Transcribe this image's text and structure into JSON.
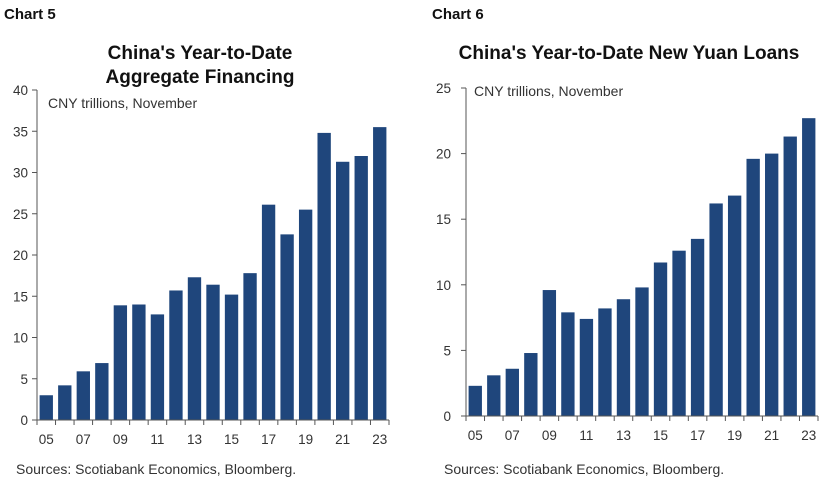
{
  "charts": [
    {
      "label": "Chart 5",
      "title_line1": "China's Year-to-Date",
      "title_line2": "Aggregate Financing",
      "source": "Sources: Scotiabank Economics, Bloomberg."
    },
    {
      "label": "Chart 6",
      "title_line1": "China's Year-to-Date New Yuan Loans",
      "source": "Sources: Scotiabank Economics, Bloomberg."
    }
  ],
  "chart_data": [
    {
      "type": "bar",
      "title": "China's Year-to-Date Aggregate Financing",
      "annotation": "CNY trillions, November",
      "categories": [
        "05",
        "06",
        "07",
        "08",
        "09",
        "10",
        "11",
        "12",
        "13",
        "14",
        "15",
        "16",
        "17",
        "18",
        "19",
        "20",
        "21",
        "22",
        "23"
      ],
      "xtick_labels": [
        "05",
        "07",
        "09",
        "11",
        "13",
        "15",
        "17",
        "19",
        "21",
        "23"
      ],
      "values": [
        3.0,
        4.2,
        5.9,
        6.9,
        13.9,
        14.0,
        12.8,
        15.7,
        17.3,
        16.4,
        15.2,
        17.8,
        26.1,
        22.5,
        25.5,
        34.8,
        31.3,
        32.0,
        35.5
      ],
      "ylim": [
        0,
        40
      ],
      "yticks": [
        0,
        5,
        10,
        15,
        20,
        25,
        30,
        35,
        40
      ],
      "color": "#1f467c"
    },
    {
      "type": "bar",
      "title": "China's Year-to-Date New Yuan Loans",
      "annotation": "CNY trillions, November",
      "categories": [
        "05",
        "06",
        "07",
        "08",
        "09",
        "10",
        "11",
        "12",
        "13",
        "14",
        "15",
        "16",
        "17",
        "18",
        "19",
        "20",
        "21",
        "22",
        "23"
      ],
      "xtick_labels": [
        "05",
        "07",
        "09",
        "11",
        "13",
        "15",
        "17",
        "19",
        "21",
        "23"
      ],
      "values": [
        2.3,
        3.1,
        3.6,
        4.8,
        9.6,
        7.9,
        7.4,
        8.2,
        8.9,
        9.8,
        11.7,
        12.6,
        13.5,
        16.2,
        16.8,
        19.6,
        20.0,
        21.3,
        22.7
      ],
      "ylim": [
        0,
        25
      ],
      "yticks": [
        0,
        5,
        10,
        15,
        20,
        25
      ],
      "color": "#1f467c"
    }
  ]
}
